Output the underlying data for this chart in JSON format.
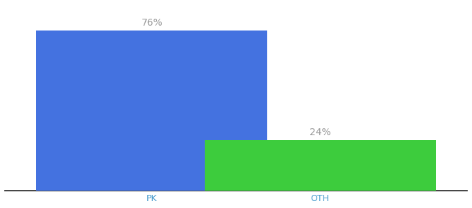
{
  "categories": [
    "PK",
    "OTH"
  ],
  "values": [
    76,
    24
  ],
  "bar_colors": [
    "#4472e0",
    "#3dcc3d"
  ],
  "label_texts": [
    "76%",
    "24%"
  ],
  "xlabel": "",
  "ylabel": "",
  "ylim": [
    0,
    88
  ],
  "background_color": "#ffffff",
  "label_color": "#999999",
  "tick_color": "#4499cc",
  "bar_width": 0.55,
  "label_fontsize": 10,
  "tick_fontsize": 9,
  "x_positions": [
    0.35,
    0.75
  ]
}
